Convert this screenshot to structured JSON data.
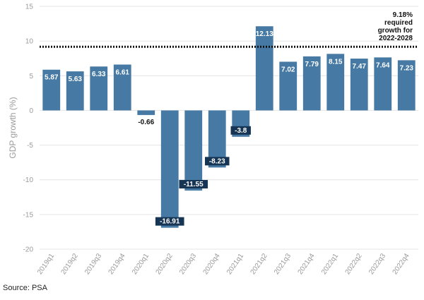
{
  "chart_data": {
    "type": "bar",
    "categories": [
      "2019q1",
      "2019q2",
      "2019q3",
      "2019q4",
      "2020q1",
      "2020q2",
      "2020q3",
      "2020q4",
      "2021q1",
      "2021q2",
      "2021q3",
      "2021q4",
      "2022q1",
      "2022q2",
      "2022q3",
      "2022q4"
    ],
    "values": [
      5.87,
      5.63,
      6.33,
      6.61,
      -0.66,
      -16.91,
      -11.55,
      -8.23,
      -3.8,
      12.13,
      7.02,
      7.79,
      8.15,
      7.47,
      7.64,
      7.23
    ],
    "value_labels": [
      "5.87",
      "5.63",
      "6.33",
      "6.61",
      "-0.66",
      "-16.91",
      "-11.55",
      "-8.23",
      "-3.8",
      "12.13",
      "7.02",
      "7.79",
      "8.15",
      "7.47",
      "7.64",
      "7.23"
    ],
    "ylabel": "GDP growth (%)",
    "xlabel": "",
    "ylim": [
      -20,
      15
    ],
    "yticks": [
      15,
      10,
      5,
      0,
      -5,
      -10,
      -15,
      -20
    ],
    "grid": true,
    "reference_line": {
      "value": 9.18,
      "style": "dotted",
      "label_lines": [
        "9.18%",
        "required",
        "growth for",
        "2022-2028"
      ]
    },
    "colors": {
      "bar": "#467aa4",
      "grid": "#e4e4e4",
      "reference": "#111111"
    }
  },
  "source": "Source: PSA"
}
